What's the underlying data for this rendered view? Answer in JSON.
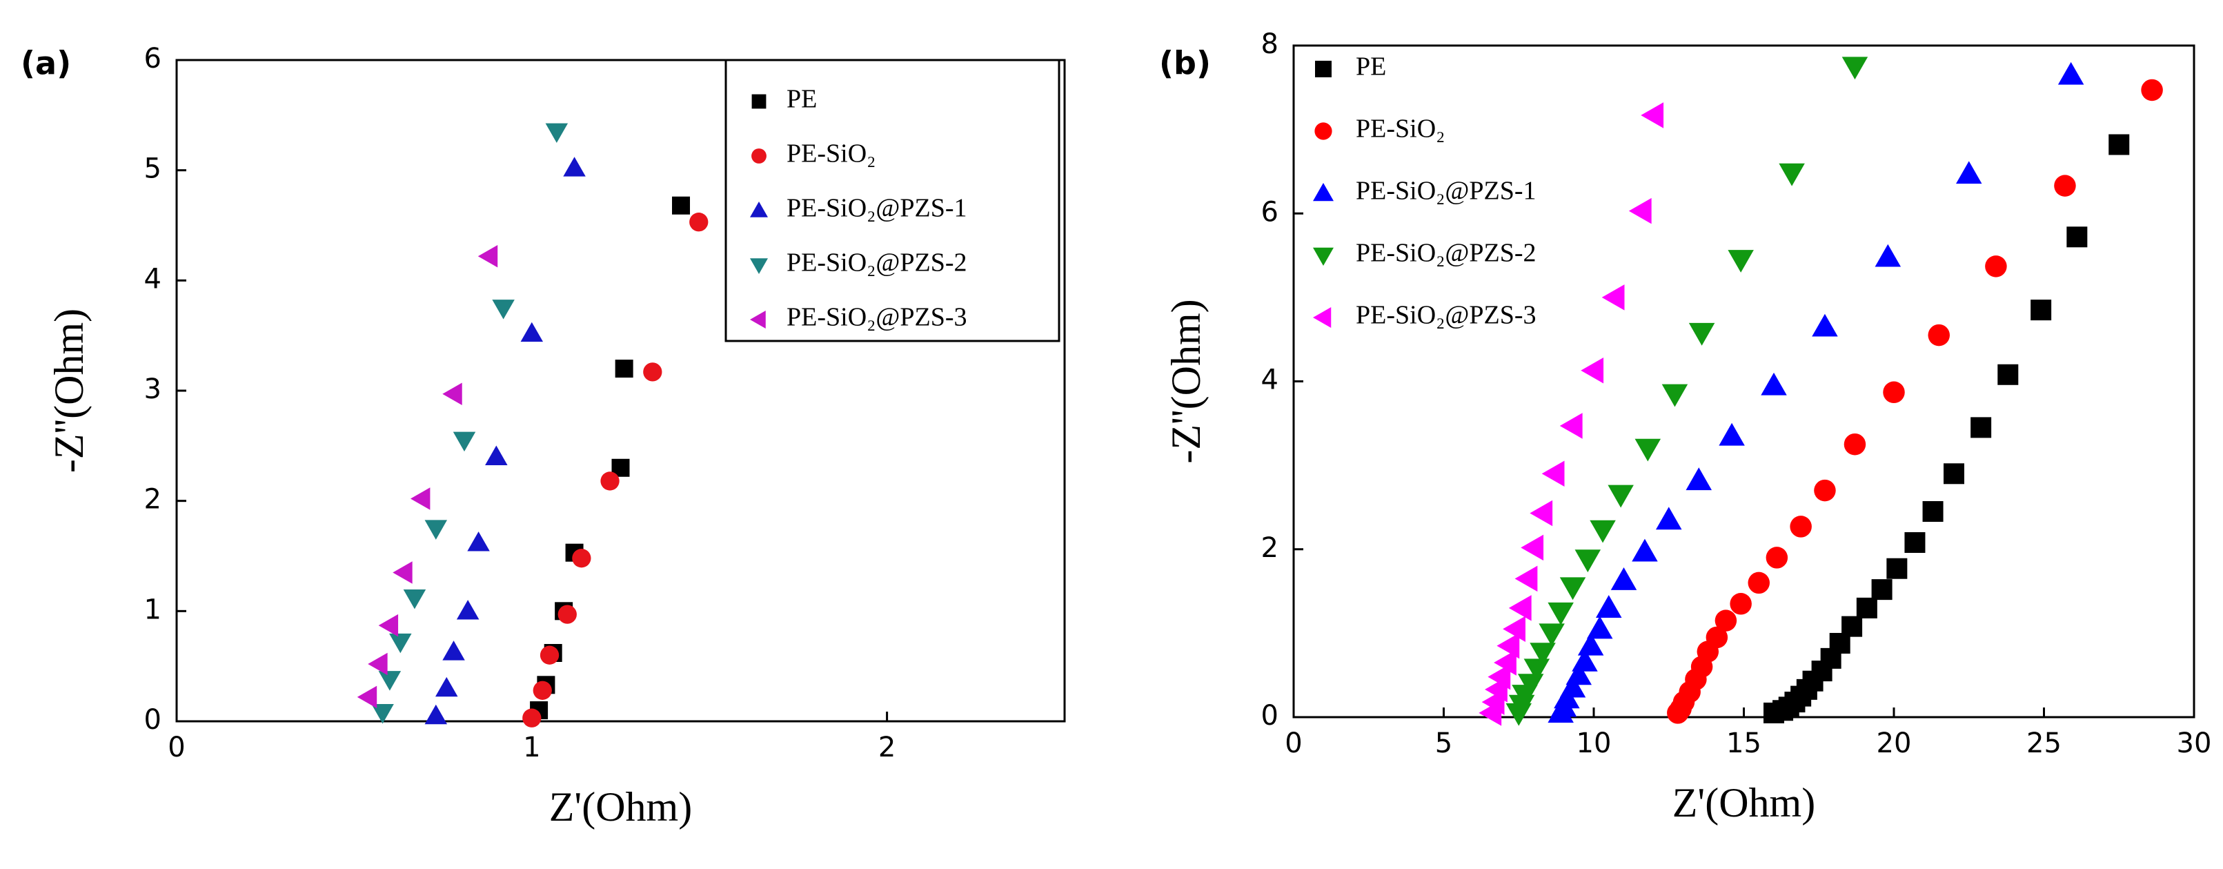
{
  "chart_data": [
    {
      "type": "scatter",
      "panel_label": "(a)",
      "x_label": "Z'(Ohm)",
      "y_label": "-Z''(Ohm)",
      "xlim": [
        0,
        2.5
      ],
      "xticks": [
        0,
        1,
        2
      ],
      "ylim": [
        0,
        6
      ],
      "yticks": [
        0,
        1,
        2,
        3,
        4,
        5,
        6
      ],
      "legend": "upper right",
      "legend_frame": true,
      "series": [
        {
          "name": "PE",
          "color": "#000000",
          "marker": "square",
          "x": [
            1.02,
            1.04,
            1.06,
            1.09,
            1.12,
            1.25,
            1.26,
            1.42
          ],
          "values": [
            0.1,
            0.33,
            0.62,
            1.0,
            1.53,
            2.3,
            3.2,
            4.68
          ]
        },
        {
          "name": "PE-SiO₂",
          "color": "#e8141c",
          "marker": "circle",
          "x": [
            1.0,
            1.03,
            1.05,
            1.1,
            1.14,
            1.22,
            1.34,
            1.47
          ],
          "values": [
            0.03,
            0.28,
            0.6,
            0.97,
            1.48,
            2.18,
            3.17,
            4.53
          ]
        },
        {
          "name": "PE-SiO₂@PZS-1",
          "color": "#1414c8",
          "marker": "triangle-up",
          "x": [
            0.73,
            0.76,
            0.78,
            0.82,
            0.85,
            0.9,
            1.0,
            1.12
          ],
          "values": [
            0.05,
            0.3,
            0.63,
            1.0,
            1.62,
            2.4,
            3.52,
            5.02
          ]
        },
        {
          "name": "PE-SiO₂@PZS-2",
          "color": "#1e8282",
          "marker": "triangle-down",
          "x": [
            0.58,
            0.6,
            0.63,
            0.67,
            0.73,
            0.81,
            0.92,
            1.07
          ],
          "values": [
            0.08,
            0.38,
            0.72,
            1.12,
            1.75,
            2.55,
            3.75,
            5.35
          ]
        },
        {
          "name": "PE-SiO₂@PZS-3",
          "color": "#c814c8",
          "marker": "triangle-left",
          "x": [
            0.54,
            0.57,
            0.6,
            0.64,
            0.69,
            0.78,
            0.88
          ],
          "values": [
            0.22,
            0.52,
            0.87,
            1.35,
            2.02,
            2.97,
            4.22
          ]
        }
      ]
    },
    {
      "type": "scatter",
      "panel_label": "(b)",
      "x_label": "Z'(Ohm)",
      "y_label": "-Z''(Ohm)",
      "xlim": [
        0,
        30
      ],
      "xticks": [
        0,
        5,
        10,
        15,
        20,
        25,
        30
      ],
      "ylim": [
        0,
        8
      ],
      "yticks": [
        0,
        2,
        4,
        6,
        8
      ],
      "legend": "upper left",
      "legend_frame": false,
      "series": [
        {
          "name": "PE",
          "color": "#000000",
          "marker": "square",
          "x": [
            16.0,
            16.3,
            16.5,
            16.7,
            16.9,
            17.1,
            17.3,
            17.6,
            17.9,
            18.2,
            18.6,
            19.1,
            19.6,
            20.1,
            20.7,
            21.3,
            22.0,
            22.9,
            23.8,
            24.9,
            26.1,
            27.5
          ],
          "values": [
            0.05,
            0.08,
            0.12,
            0.18,
            0.25,
            0.33,
            0.43,
            0.55,
            0.7,
            0.88,
            1.08,
            1.3,
            1.52,
            1.77,
            2.08,
            2.45,
            2.9,
            3.45,
            4.08,
            4.85,
            5.72,
            6.82
          ]
        },
        {
          "name": "PE-SiO₂",
          "color": "#ff0000",
          "marker": "circle",
          "x": [
            12.8,
            12.9,
            13.0,
            13.2,
            13.4,
            13.6,
            13.8,
            14.1,
            14.4,
            14.9,
            15.5,
            16.1,
            16.9,
            17.7,
            18.7,
            20.0,
            21.5,
            23.4,
            25.7,
            28.6
          ],
          "values": [
            0.05,
            0.1,
            0.18,
            0.3,
            0.45,
            0.6,
            0.78,
            0.95,
            1.15,
            1.35,
            1.6,
            1.9,
            2.27,
            2.7,
            3.25,
            3.87,
            4.55,
            5.37,
            6.33,
            7.47
          ]
        },
        {
          "name": "PE-SiO₂@PZS-1",
          "color": "#0000ff",
          "marker": "triangle-up",
          "x": [
            8.9,
            9.0,
            9.1,
            9.3,
            9.5,
            9.7,
            9.9,
            10.2,
            10.5,
            11.0,
            11.7,
            12.5,
            13.5,
            14.6,
            16.0,
            17.7,
            19.8,
            22.5,
            25.9
          ],
          "values": [
            0.05,
            0.12,
            0.22,
            0.35,
            0.5,
            0.66,
            0.85,
            1.05,
            1.3,
            1.63,
            1.97,
            2.35,
            2.82,
            3.35,
            3.95,
            4.65,
            5.48,
            6.47,
            7.65
          ]
        },
        {
          "name": "PE-SiO₂@PZS-2",
          "color": "#119911",
          "marker": "triangle-down",
          "x": [
            7.5,
            7.6,
            7.7,
            7.9,
            8.1,
            8.3,
            8.6,
            8.9,
            9.3,
            9.8,
            10.3,
            10.9,
            11.8,
            12.7,
            13.6,
            14.9,
            16.6,
            18.7
          ],
          "values": [
            0.05,
            0.15,
            0.27,
            0.4,
            0.58,
            0.77,
            1.0,
            1.25,
            1.55,
            1.88,
            2.23,
            2.65,
            3.2,
            3.85,
            4.58,
            5.45,
            6.48,
            7.75
          ]
        },
        {
          "name": "PE-SiO₂@PZS-3",
          "color": "#ff00ff",
          "marker": "triangle-left",
          "x": [
            6.6,
            6.7,
            6.8,
            6.9,
            7.1,
            7.2,
            7.4,
            7.6,
            7.8,
            8.0,
            8.3,
            8.7,
            9.3,
            10.0,
            10.7,
            11.6,
            12.0
          ],
          "values": [
            0.05,
            0.18,
            0.33,
            0.48,
            0.65,
            0.85,
            1.05,
            1.3,
            1.65,
            2.02,
            2.43,
            2.9,
            3.47,
            4.13,
            5.0,
            6.03,
            7.17
          ]
        }
      ]
    }
  ]
}
